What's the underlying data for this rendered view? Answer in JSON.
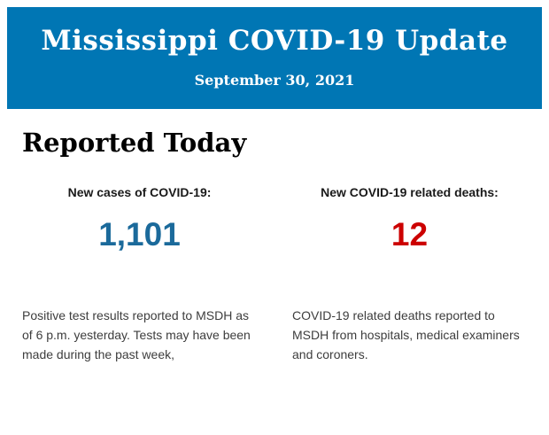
{
  "header": {
    "title": "Mississippi COVID-19 Update",
    "date": "September 30, 2021",
    "background_color": "#0076b4",
    "text_color": "#ffffff"
  },
  "section": {
    "heading": "Reported Today"
  },
  "stats": [
    {
      "id": "new-cases",
      "label": "New cases of COVID-19:",
      "value": "1,101",
      "value_color": "#1b6a9b",
      "description": "Positive test results reported to MSDH as of 6 p.m. yesterday. Tests may have been made during the past week,"
    },
    {
      "id": "new-deaths",
      "label": "New COVID-19 related deaths:",
      "value": "12",
      "value_color": "#cc0000",
      "description": "COVID-19 related deaths reported to MSDH from hospitals, medical examiners and coroners."
    }
  ]
}
